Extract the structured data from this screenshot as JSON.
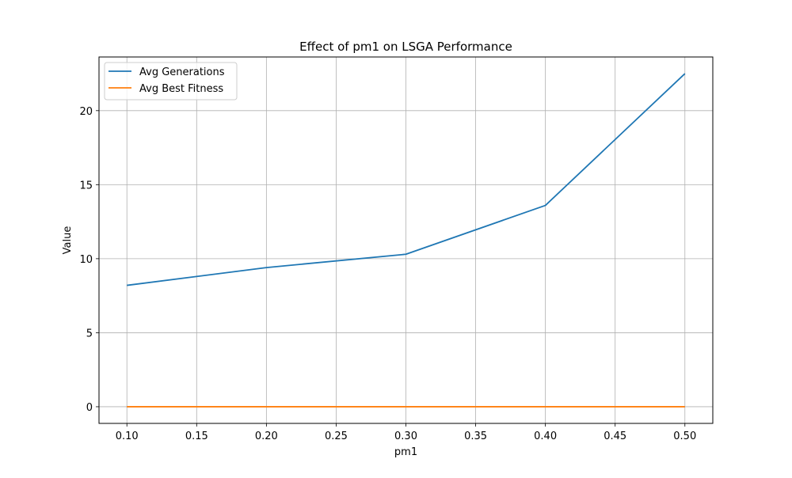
{
  "chart_data": {
    "type": "line",
    "title": "Effect of pm1 on LSGA Performance",
    "xlabel": "pm1",
    "ylabel": "Value",
    "x": [
      0.1,
      0.2,
      0.3,
      0.4,
      0.5
    ],
    "xlim": [
      0.08,
      0.52
    ],
    "ylim": [
      -1.125,
      23.625
    ],
    "xticks": [
      0.1,
      0.15,
      0.2,
      0.25,
      0.3,
      0.35,
      0.4,
      0.45,
      0.5
    ],
    "xtick_labels": [
      "0.10",
      "0.15",
      "0.20",
      "0.25",
      "0.30",
      "0.35",
      "0.40",
      "0.45",
      "0.50"
    ],
    "yticks": [
      0,
      5,
      10,
      15,
      20
    ],
    "ytick_labels": [
      "0",
      "5",
      "10",
      "15",
      "20"
    ],
    "grid": true,
    "legend_position": "top-left",
    "series": [
      {
        "name": "Avg Generations",
        "color": "#1f77b4",
        "values": [
          8.2,
          9.4,
          10.3,
          13.6,
          22.5
        ]
      },
      {
        "name": "Avg Best Fitness",
        "color": "#ff7f0e",
        "values": [
          0.0,
          0.0,
          0.0,
          0.0,
          0.0
        ]
      }
    ]
  }
}
